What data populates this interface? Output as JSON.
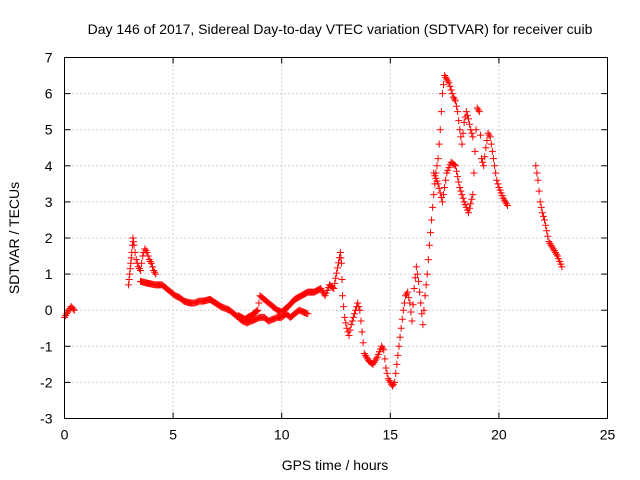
{
  "chart_data": {
    "type": "scatter",
    "title": "Day 146 of 2017, Sidereal Day-to-day VTEC variation (SDTVAR) for receiver cuib",
    "xlabel": "GPS time / hours",
    "ylabel": "SDTVAR / TECUs",
    "xlim": [
      0,
      25
    ],
    "ylim": [
      -3,
      7
    ],
    "xticks": [
      "0",
      "5",
      "10",
      "15",
      "20",
      "25"
    ],
    "yticks": [
      "-3",
      "-2",
      "-1",
      "0",
      "1",
      "2",
      "3",
      "4",
      "5",
      "6",
      "7"
    ],
    "grid": true,
    "marker": "+",
    "series_color": "#ff0000",
    "series": [
      {
        "name": "SDTVAR",
        "points": [
          [
            0.0,
            -0.2
          ],
          [
            0.1,
            -0.1
          ],
          [
            0.2,
            0.0
          ],
          [
            0.3,
            0.1
          ],
          [
            0.45,
            0.0
          ],
          [
            2.95,
            0.7
          ],
          [
            3.0,
            1.0
          ],
          [
            3.05,
            1.3
          ],
          [
            3.1,
            1.6
          ],
          [
            3.15,
            2.0
          ],
          [
            3.2,
            1.8
          ],
          [
            3.3,
            1.4
          ],
          [
            3.4,
            1.2
          ],
          [
            3.5,
            1.1
          ],
          [
            3.6,
            1.5
          ],
          [
            3.7,
            1.7
          ],
          [
            3.8,
            1.6
          ],
          [
            3.9,
            1.4
          ],
          [
            4.0,
            1.3
          ],
          [
            4.1,
            1.1
          ],
          [
            4.2,
            1.0
          ],
          [
            3.5,
            0.8
          ],
          [
            3.8,
            0.75
          ],
          [
            4.2,
            0.7
          ],
          [
            4.5,
            0.7
          ],
          [
            4.7,
            0.6
          ],
          [
            4.9,
            0.5
          ],
          [
            5.1,
            0.4
          ],
          [
            5.3,
            0.35
          ],
          [
            5.5,
            0.25
          ],
          [
            5.8,
            0.2
          ],
          [
            6.0,
            0.2
          ],
          [
            6.2,
            0.25
          ],
          [
            6.4,
            0.25
          ],
          [
            6.7,
            0.3
          ],
          [
            7.2,
            0.1
          ],
          [
            7.4,
            0.05
          ],
          [
            7.6,
            0.0
          ],
          [
            7.8,
            -0.1
          ],
          [
            8.0,
            -0.2
          ],
          [
            8.2,
            -0.3
          ],
          [
            8.4,
            -0.35
          ],
          [
            8.6,
            -0.3
          ],
          [
            8.8,
            -0.25
          ],
          [
            9.0,
            -0.2
          ],
          [
            9.2,
            -0.2
          ],
          [
            9.4,
            -0.3
          ],
          [
            9.6,
            -0.25
          ],
          [
            9.8,
            -0.2
          ],
          [
            10.0,
            -0.2
          ],
          [
            10.2,
            -0.1
          ],
          [
            10.4,
            -0.2
          ],
          [
            10.6,
            -0.1
          ],
          [
            10.8,
            0.0
          ],
          [
            11.0,
            -0.05
          ],
          [
            11.2,
            -0.1
          ],
          [
            8.0,
            -0.15
          ],
          [
            8.3,
            -0.25
          ],
          [
            8.6,
            -0.15
          ],
          [
            8.9,
            0.0
          ],
          [
            9.0,
            0.4
          ],
          [
            9.2,
            0.3
          ],
          [
            9.4,
            0.2
          ],
          [
            9.6,
            0.1
          ],
          [
            9.8,
            0.0
          ],
          [
            10.0,
            -0.05
          ],
          [
            10.3,
            0.1
          ],
          [
            10.6,
            0.3
          ],
          [
            10.9,
            0.4
          ],
          [
            11.2,
            0.5
          ],
          [
            11.5,
            0.5
          ],
          [
            11.8,
            0.6
          ],
          [
            12.0,
            0.4
          ],
          [
            12.2,
            0.7
          ],
          [
            12.4,
            0.6
          ],
          [
            12.7,
            1.6
          ],
          [
            12.75,
            1.3
          ],
          [
            12.8,
            0.4
          ],
          [
            12.9,
            -0.2
          ],
          [
            13.0,
            -0.5
          ],
          [
            13.1,
            -0.7
          ],
          [
            13.2,
            -0.4
          ],
          [
            13.3,
            -0.2
          ],
          [
            13.4,
            0.0
          ],
          [
            13.5,
            0.2
          ],
          [
            13.6,
            0.0
          ],
          [
            13.7,
            -0.6
          ],
          [
            13.8,
            -1.2
          ],
          [
            14.0,
            -1.4
          ],
          [
            14.2,
            -1.5
          ],
          [
            14.4,
            -1.3
          ],
          [
            14.6,
            -1.0
          ],
          [
            14.7,
            -1.1
          ],
          [
            14.8,
            -1.6
          ],
          [
            14.9,
            -1.9
          ],
          [
            15.0,
            -2.0
          ],
          [
            15.1,
            -2.1
          ],
          [
            15.2,
            -2.0
          ],
          [
            15.3,
            -1.5
          ],
          [
            15.4,
            -1.0
          ],
          [
            15.5,
            -0.5
          ],
          [
            15.6,
            0.0
          ],
          [
            15.7,
            0.4
          ],
          [
            15.8,
            0.5
          ],
          [
            15.9,
            0.2
          ],
          [
            16.0,
            -0.3
          ],
          [
            16.1,
            0.6
          ],
          [
            16.2,
            1.2
          ],
          [
            16.3,
            0.8
          ],
          [
            16.4,
            0.2
          ],
          [
            16.5,
            -0.4
          ],
          [
            16.6,
            0.4
          ],
          [
            16.7,
            1.0
          ],
          [
            16.8,
            1.8
          ],
          [
            16.9,
            2.5
          ],
          [
            17.0,
            3.2
          ],
          [
            17.1,
            3.8
          ],
          [
            17.2,
            4.2
          ],
          [
            17.3,
            5.0
          ],
          [
            17.4,
            6.0
          ],
          [
            17.5,
            6.5
          ],
          [
            17.6,
            6.4
          ],
          [
            17.7,
            6.3
          ],
          [
            17.8,
            6.1
          ],
          [
            17.9,
            5.9
          ],
          [
            18.0,
            5.8
          ],
          [
            18.1,
            5.5
          ],
          [
            18.2,
            5.0
          ],
          [
            18.3,
            4.6
          ],
          [
            18.4,
            5.2
          ],
          [
            18.5,
            5.5
          ],
          [
            18.6,
            5.3
          ],
          [
            18.7,
            5.0
          ],
          [
            18.8,
            4.8
          ],
          [
            17.0,
            3.8
          ],
          [
            17.2,
            3.5
          ],
          [
            17.4,
            3.0
          ],
          [
            17.6,
            3.8
          ],
          [
            17.8,
            4.1
          ],
          [
            18.0,
            4.0
          ],
          [
            18.2,
            3.4
          ],
          [
            18.4,
            3.0
          ],
          [
            18.6,
            2.7
          ],
          [
            18.8,
            3.2
          ],
          [
            19.0,
            5.6
          ],
          [
            19.1,
            5.5
          ],
          [
            19.2,
            4.2
          ],
          [
            19.3,
            4.0
          ],
          [
            19.4,
            4.5
          ],
          [
            19.5,
            4.9
          ],
          [
            19.6,
            4.8
          ],
          [
            19.7,
            4.4
          ],
          [
            19.8,
            4.0
          ],
          [
            19.9,
            3.6
          ],
          [
            20.0,
            3.4
          ],
          [
            20.2,
            3.1
          ],
          [
            20.4,
            2.9
          ],
          [
            21.7,
            4.0
          ],
          [
            21.8,
            3.6
          ],
          [
            21.9,
            3.0
          ],
          [
            22.0,
            2.7
          ],
          [
            22.1,
            2.5
          ],
          [
            22.2,
            2.2
          ],
          [
            22.3,
            1.9
          ],
          [
            22.5,
            1.7
          ],
          [
            22.7,
            1.5
          ],
          [
            22.9,
            1.2
          ]
        ]
      }
    ]
  }
}
